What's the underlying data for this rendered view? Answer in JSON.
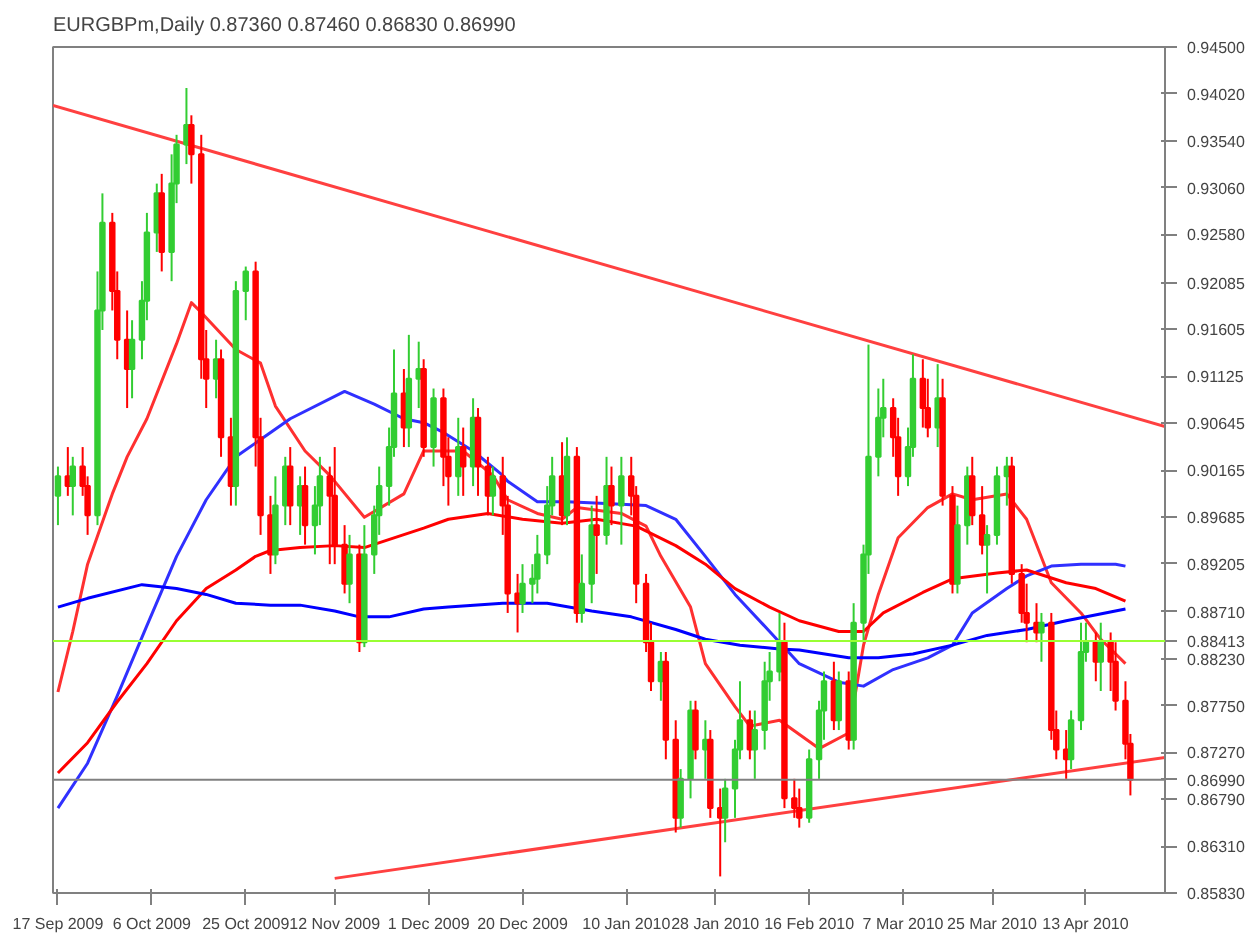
{
  "chart_data": {
    "type": "candlestick",
    "title": "EURGBPm,Daily 0.87360 0.87460 0.86830 0.86990",
    "x": [
      "2009-09-17",
      "2009-09-19",
      "2009-09-20",
      "2009-09-22",
      "2009-09-23",
      "2009-09-25",
      "2009-09-26",
      "2009-09-28",
      "2009-09-29",
      "2009-10-01",
      "2009-10-02",
      "2009-10-04",
      "2009-10-05",
      "2009-10-07",
      "2009-10-08",
      "2009-10-10",
      "2009-10-11",
      "2009-10-13",
      "2009-10-14",
      "2009-10-16",
      "2009-10-17",
      "2009-10-19",
      "2009-10-20",
      "2009-10-22",
      "2009-10-23",
      "2009-10-25",
      "2009-10-27",
      "2009-10-28",
      "2009-10-30",
      "2009-10-31",
      "2009-11-02",
      "2009-11-03",
      "2009-11-05",
      "2009-11-06",
      "2009-11-08",
      "2009-11-09",
      "2009-11-11",
      "2009-11-12",
      "2009-11-14",
      "2009-11-15",
      "2009-11-17",
      "2009-11-18",
      "2009-11-20",
      "2009-11-21",
      "2009-11-23",
      "2009-11-24",
      "2009-11-26",
      "2009-11-27",
      "2009-11-29",
      "2009-11-30",
      "2009-12-02",
      "2009-12-04",
      "2009-12-05",
      "2009-12-07",
      "2009-12-08",
      "2009-12-10",
      "2009-12-11",
      "2009-12-13",
      "2009-12-14",
      "2009-12-16",
      "2009-12-17",
      "2009-12-19",
      "2009-12-20",
      "2009-12-22",
      "2009-12-23",
      "2009-12-25",
      "2009-12-26",
      "2009-12-28",
      "2009-12-29",
      "2009-12-31",
      "2010-01-01",
      "2010-01-03",
      "2010-01-04",
      "2010-01-06",
      "2010-01-07",
      "2010-01-09",
      "2010-01-11",
      "2010-01-12",
      "2010-01-14",
      "2010-01-15",
      "2010-01-17",
      "2010-01-18",
      "2010-01-20",
      "2010-01-21",
      "2010-01-23",
      "2010-01-24",
      "2010-01-26",
      "2010-01-27",
      "2010-01-29",
      "2010-01-30",
      "2010-02-01",
      "2010-02-02",
      "2010-02-04",
      "2010-02-05",
      "2010-02-07",
      "2010-02-08",
      "2010-02-10",
      "2010-02-11",
      "2010-02-13",
      "2010-02-14",
      "2010-02-16",
      "2010-02-18",
      "2010-02-19",
      "2010-02-21",
      "2010-02-22",
      "2010-02-24",
      "2010-02-25",
      "2010-02-27",
      "2010-02-28",
      "2010-03-02",
      "2010-03-03",
      "2010-03-05",
      "2010-03-06",
      "2010-03-08",
      "2010-03-09",
      "2010-03-11",
      "2010-03-12",
      "2010-03-14",
      "2010-03-15",
      "2010-03-17",
      "2010-03-18",
      "2010-03-20",
      "2010-03-21",
      "2010-03-23",
      "2010-03-24",
      "2010-03-26",
      "2010-03-28",
      "2010-03-29",
      "2010-03-31",
      "2010-04-01",
      "2010-04-03",
      "2010-04-04",
      "2010-04-06",
      "2010-04-07",
      "2010-04-09",
      "2010-04-10",
      "2010-04-12",
      "2010-04-13",
      "2010-04-15",
      "2010-04-16",
      "2010-04-18",
      "2010-04-19",
      "2010-04-21",
      "2010-04-22"
    ],
    "ohlc": [
      [
        0.899,
        0.902,
        0.896,
        0.901
      ],
      [
        0.901,
        0.904,
        0.899,
        0.9
      ],
      [
        0.9,
        0.903,
        0.897,
        0.902
      ],
      [
        0.902,
        0.904,
        0.899,
        0.9
      ],
      [
        0.9,
        0.901,
        0.895,
        0.897
      ],
      [
        0.897,
        0.922,
        0.896,
        0.918
      ],
      [
        0.918,
        0.93,
        0.916,
        0.927
      ],
      [
        0.927,
        0.928,
        0.918,
        0.92
      ],
      [
        0.92,
        0.922,
        0.913,
        0.915
      ],
      [
        0.915,
        0.918,
        0.908,
        0.912
      ],
      [
        0.912,
        0.917,
        0.909,
        0.915
      ],
      [
        0.915,
        0.921,
        0.913,
        0.919
      ],
      [
        0.919,
        0.928,
        0.917,
        0.926
      ],
      [
        0.926,
        0.931,
        0.924,
        0.93
      ],
      [
        0.93,
        0.932,
        0.922,
        0.924
      ],
      [
        0.924,
        0.934,
        0.921,
        0.931
      ],
      [
        0.931,
        0.936,
        0.929,
        0.935
      ],
      [
        0.935,
        0.9408,
        0.933,
        0.937
      ],
      [
        0.937,
        0.938,
        0.931,
        0.934
      ],
      [
        0.934,
        0.936,
        0.911,
        0.913
      ],
      [
        0.913,
        0.916,
        0.908,
        0.911
      ],
      [
        0.911,
        0.915,
        0.909,
        0.913
      ],
      [
        0.913,
        0.914,
        0.903,
        0.905
      ],
      [
        0.905,
        0.907,
        0.898,
        0.9
      ],
      [
        0.9,
        0.921,
        0.898,
        0.92
      ],
      [
        0.92,
        0.9225,
        0.917,
        0.922
      ],
      [
        0.922,
        0.923,
        0.902,
        0.905
      ],
      [
        0.905,
        0.907,
        0.895,
        0.897
      ],
      [
        0.897,
        0.899,
        0.891,
        0.893
      ],
      [
        0.893,
        0.901,
        0.892,
        0.898
      ],
      [
        0.898,
        0.903,
        0.896,
        0.902
      ],
      [
        0.902,
        0.904,
        0.896,
        0.898
      ],
      [
        0.898,
        0.901,
        0.895,
        0.9
      ],
      [
        0.9,
        0.902,
        0.894,
        0.896
      ],
      [
        0.896,
        0.9,
        0.893,
        0.898
      ],
      [
        0.898,
        0.903,
        0.896,
        0.901
      ],
      [
        0.901,
        0.902,
        0.892,
        0.899
      ],
      [
        0.899,
        0.904,
        0.892,
        0.894
      ],
      [
        0.894,
        0.896,
        0.889,
        0.89
      ],
      [
        0.89,
        0.895,
        0.888,
        0.893
      ],
      [
        0.893,
        0.894,
        0.883,
        0.884
      ],
      [
        0.884,
        0.896,
        0.8835,
        0.893
      ],
      [
        0.893,
        0.898,
        0.891,
        0.897
      ],
      [
        0.897,
        0.902,
        0.895,
        0.9
      ],
      [
        0.9,
        0.906,
        0.898,
        0.904
      ],
      [
        0.904,
        0.914,
        0.903,
        0.9095
      ],
      [
        0.9095,
        0.912,
        0.904,
        0.906
      ],
      [
        0.906,
        0.9155,
        0.904,
        0.911
      ],
      [
        0.911,
        0.9148,
        0.908,
        0.912
      ],
      [
        0.912,
        0.913,
        0.903,
        0.904
      ],
      [
        0.904,
        0.91,
        0.902,
        0.909
      ],
      [
        0.909,
        0.91,
        0.9,
        0.903
      ],
      [
        0.903,
        0.905,
        0.898,
        0.901
      ],
      [
        0.901,
        0.907,
        0.899,
        0.904
      ],
      [
        0.904,
        0.906,
        0.899,
        0.902
      ],
      [
        0.902,
        0.909,
        0.9,
        0.907
      ],
      [
        0.907,
        0.908,
        0.899,
        0.902
      ],
      [
        0.902,
        0.903,
        0.897,
        0.899
      ],
      [
        0.899,
        0.902,
        0.897,
        0.901
      ],
      [
        0.901,
        0.903,
        0.895,
        0.898
      ],
      [
        0.898,
        0.899,
        0.887,
        0.889
      ],
      [
        0.889,
        0.891,
        0.885,
        0.888
      ],
      [
        0.888,
        0.892,
        0.887,
        0.89
      ],
      [
        0.89,
        0.892,
        0.888,
        0.8905
      ],
      [
        0.8905,
        0.895,
        0.889,
        0.893
      ],
      [
        0.893,
        0.9,
        0.892,
        0.898
      ],
      [
        0.898,
        0.903,
        0.897,
        0.901
      ],
      [
        0.901,
        0.9045,
        0.896,
        0.897
      ],
      [
        0.897,
        0.905,
        0.896,
        0.903
      ],
      [
        0.903,
        0.904,
        0.886,
        0.887
      ],
      [
        0.887,
        0.893,
        0.886,
        0.89
      ],
      [
        0.89,
        0.898,
        0.888,
        0.896
      ],
      [
        0.896,
        0.899,
        0.891,
        0.895
      ],
      [
        0.895,
        0.903,
        0.894,
        0.9
      ],
      [
        0.9,
        0.902,
        0.896,
        0.898
      ],
      [
        0.898,
        0.903,
        0.894,
        0.901
      ],
      [
        0.901,
        0.903,
        0.897,
        0.899
      ],
      [
        0.899,
        0.9,
        0.888,
        0.89
      ],
      [
        0.89,
        0.891,
        0.883,
        0.884
      ],
      [
        0.884,
        0.886,
        0.879,
        0.88
      ],
      [
        0.88,
        0.883,
        0.878,
        0.882
      ],
      [
        0.882,
        0.883,
        0.872,
        0.874
      ],
      [
        0.874,
        0.876,
        0.8645,
        0.866
      ],
      [
        0.866,
        0.871,
        0.865,
        0.87
      ],
      [
        0.87,
        0.878,
        0.868,
        0.877
      ],
      [
        0.877,
        0.878,
        0.872,
        0.873
      ],
      [
        0.873,
        0.876,
        0.87,
        0.874
      ],
      [
        0.874,
        0.875,
        0.866,
        0.867
      ],
      [
        0.867,
        0.869,
        0.86,
        0.866
      ],
      [
        0.866,
        0.87,
        0.8635,
        0.869
      ],
      [
        0.869,
        0.874,
        0.866,
        0.873
      ],
      [
        0.873,
        0.88,
        0.872,
        0.876
      ],
      [
        0.876,
        0.877,
        0.872,
        0.873
      ],
      [
        0.873,
        0.877,
        0.87,
        0.875
      ],
      [
        0.875,
        0.882,
        0.873,
        0.88
      ],
      [
        0.88,
        0.883,
        0.878,
        0.881
      ],
      [
        0.881,
        0.887,
        0.88,
        0.884
      ],
      [
        0.884,
        0.886,
        0.867,
        0.868
      ],
      [
        0.868,
        0.87,
        0.866,
        0.867
      ],
      [
        0.867,
        0.869,
        0.865,
        0.866
      ],
      [
        0.866,
        0.873,
        0.8655,
        0.872
      ],
      [
        0.872,
        0.878,
        0.87,
        0.877
      ],
      [
        0.877,
        0.881,
        0.874,
        0.88
      ],
      [
        0.88,
        0.882,
        0.875,
        0.876
      ],
      [
        0.876,
        0.881,
        0.875,
        0.88
      ],
      [
        0.88,
        0.881,
        0.873,
        0.874
      ],
      [
        0.874,
        0.888,
        0.873,
        0.886
      ],
      [
        0.886,
        0.894,
        0.884,
        0.893
      ],
      [
        0.893,
        0.9145,
        0.891,
        0.903
      ],
      [
        0.903,
        0.91,
        0.901,
        0.907
      ],
      [
        0.907,
        0.911,
        0.905,
        0.908
      ],
      [
        0.908,
        0.909,
        0.903,
        0.905
      ],
      [
        0.905,
        0.907,
        0.899,
        0.901
      ],
      [
        0.901,
        0.906,
        0.9,
        0.904
      ],
      [
        0.904,
        0.9135,
        0.903,
        0.911
      ],
      [
        0.911,
        0.913,
        0.906,
        0.908
      ],
      [
        0.908,
        0.911,
        0.905,
        0.906
      ],
      [
        0.906,
        0.9125,
        0.904,
        0.909
      ],
      [
        0.909,
        0.911,
        0.898,
        0.899
      ],
      [
        0.899,
        0.9,
        0.889,
        0.89
      ],
      [
        0.89,
        0.898,
        0.889,
        0.896
      ],
      [
        0.896,
        0.902,
        0.894,
        0.901
      ],
      [
        0.901,
        0.903,
        0.896,
        0.897
      ],
      [
        0.897,
        0.9,
        0.893,
        0.894
      ],
      [
        0.894,
        0.896,
        0.889,
        0.895
      ],
      [
        0.895,
        0.902,
        0.894,
        0.901
      ],
      [
        0.901,
        0.903,
        0.898,
        0.902
      ],
      [
        0.902,
        0.903,
        0.89,
        0.891
      ],
      [
        0.891,
        0.892,
        0.886,
        0.887
      ],
      [
        0.887,
        0.89,
        0.884,
        0.886
      ],
      [
        0.886,
        0.888,
        0.884,
        0.885
      ],
      [
        0.885,
        0.887,
        0.882,
        0.886
      ],
      [
        0.886,
        0.887,
        0.874,
        0.875
      ],
      [
        0.875,
        0.877,
        0.872,
        0.873
      ],
      [
        0.873,
        0.875,
        0.87,
        0.872
      ],
      [
        0.872,
        0.877,
        0.871,
        0.876
      ],
      [
        0.876,
        0.886,
        0.875,
        0.883
      ],
      [
        0.883,
        0.886,
        0.882,
        0.884
      ],
      [
        0.884,
        0.885,
        0.88,
        0.882
      ],
      [
        0.882,
        0.886,
        0.879,
        0.884
      ],
      [
        0.884,
        0.885,
        0.879,
        0.882
      ],
      [
        0.882,
        0.884,
        0.877,
        0.878
      ],
      [
        0.878,
        0.88,
        0.872,
        0.8736
      ],
      [
        0.8736,
        0.8746,
        0.8683,
        0.8699
      ]
    ],
    "colors": [
      "#32cd32",
      "#ff0000",
      "#32cd32",
      "#ff0000",
      "#ff0000",
      "#32cd32",
      "#32cd32",
      "#ff0000",
      "#ff0000",
      "#ff0000",
      "#32cd32",
      "#32cd32",
      "#32cd32",
      "#32cd32",
      "#ff0000",
      "#32cd32",
      "#32cd32",
      "#32cd32",
      "#ff0000",
      "#ff0000",
      "#ff0000",
      "#32cd32",
      "#ff0000",
      "#ff0000",
      "#32cd32",
      "#32cd32",
      "#ff0000",
      "#ff0000",
      "#ff0000",
      "#32cd32",
      "#32cd32",
      "#ff0000",
      "#32cd32",
      "#ff0000",
      "#32cd32",
      "#32cd32",
      "#ff0000",
      "#ff0000",
      "#ff0000",
      "#32cd32",
      "#ff0000",
      "#32cd32",
      "#32cd32",
      "#32cd32",
      "#32cd32",
      "#32cd32",
      "#ff0000",
      "#32cd32",
      "#32cd32",
      "#ff0000",
      "#32cd32",
      "#ff0000",
      "#ff0000",
      "#32cd32",
      "#ff0000",
      "#32cd32",
      "#ff0000",
      "#ff0000",
      "#32cd32",
      "#ff0000",
      "#ff0000",
      "#ff0000",
      "#32cd32",
      "#32cd32",
      "#32cd32",
      "#32cd32",
      "#32cd32",
      "#ff0000",
      "#32cd32",
      "#ff0000",
      "#32cd32",
      "#32cd32",
      "#ff0000",
      "#32cd32",
      "#ff0000",
      "#32cd32",
      "#ff0000",
      "#ff0000",
      "#ff0000",
      "#ff0000",
      "#32cd32",
      "#ff0000",
      "#ff0000",
      "#32cd32",
      "#32cd32",
      "#ff0000",
      "#32cd32",
      "#ff0000",
      "#ff0000",
      "#32cd32",
      "#32cd32",
      "#32cd32",
      "#ff0000",
      "#32cd32",
      "#32cd32",
      "#32cd32",
      "#32cd32",
      "#ff0000",
      "#ff0000",
      "#ff0000",
      "#32cd32",
      "#32cd32",
      "#32cd32",
      "#ff0000",
      "#32cd32",
      "#ff0000",
      "#32cd32",
      "#32cd32",
      "#32cd32",
      "#32cd32",
      "#32cd32",
      "#ff0000",
      "#ff0000",
      "#32cd32",
      "#32cd32",
      "#ff0000",
      "#ff0000",
      "#32cd32",
      "#ff0000",
      "#ff0000",
      "#32cd32",
      "#32cd32",
      "#ff0000",
      "#ff0000",
      "#32cd32",
      "#32cd32",
      "#32cd32",
      "#ff0000",
      "#ff0000",
      "#ff0000",
      "#ff0000",
      "#32cd32",
      "#ff0000",
      "#ff0000",
      "#ff0000",
      "#32cd32",
      "#32cd32",
      "#32cd32",
      "#ff0000",
      "#32cd32",
      "#ff0000",
      "#ff0000",
      "#ff0000",
      "#ff0000"
    ],
    "series": [
      {
        "type": "line",
        "color": "#ff3030",
        "x": [
          "2009-09-17",
          "2009-09-20",
          "2009-09-23",
          "2009-09-28",
          "2009-10-01",
          "2009-10-05",
          "2009-10-11",
          "2009-10-14",
          "2009-10-16",
          "2009-10-23",
          "2009-10-28",
          "2009-10-31",
          "2009-11-06",
          "2009-11-11",
          "2009-11-18",
          "2009-11-26",
          "2009-11-30",
          "2009-12-08",
          "2009-12-14",
          "2009-12-17",
          "2009-12-23",
          "2009-12-28",
          "2009-12-31",
          "2010-01-09",
          "2010-01-14",
          "2010-01-17",
          "2010-01-23",
          "2010-01-26",
          "2010-02-01",
          "2010-02-04",
          "2010-02-10",
          "2010-02-18",
          "2010-02-24",
          "2010-02-27",
          "2010-03-02",
          "2010-03-06",
          "2010-03-12",
          "2010-03-17",
          "2010-03-21",
          "2010-03-28",
          "2010-04-01",
          "2010-04-06",
          "2010-04-12",
          "2010-04-16",
          "2010-04-21"
        ],
        "values": [
          0.8789,
          0.8851,
          0.892,
          0.8992,
          0.903,
          0.9069,
          0.9146,
          0.9188,
          0.9178,
          0.914,
          0.9126,
          0.9082,
          0.9036,
          0.9011,
          0.8968,
          0.8992,
          0.9036,
          0.9036,
          0.9011,
          0.8986,
          0.8972,
          0.8966,
          0.8978,
          0.8972,
          0.8959,
          0.8928,
          0.8876,
          0.8818,
          0.8774,
          0.8754,
          0.876,
          0.8731,
          0.8747,
          0.8837,
          0.8889,
          0.8947,
          0.8978,
          0.8992,
          0.8986,
          0.8992,
          0.8966,
          0.8901,
          0.887,
          0.8843,
          0.8818
        ]
      },
      {
        "type": "line",
        "color": "#3030ff",
        "x": [
          "2009-09-17",
          "2009-09-23",
          "2009-09-29",
          "2009-10-05",
          "2009-10-11",
          "2009-10-17",
          "2009-10-23",
          "2009-11-03",
          "2009-11-14",
          "2009-11-20",
          "2009-11-26",
          "2009-11-30",
          "2009-12-04",
          "2009-12-10",
          "2009-12-16",
          "2009-12-17",
          "2009-12-23",
          "2009-12-29",
          "2010-01-07",
          "2010-01-14",
          "2010-01-20",
          "2010-01-26",
          "2010-02-01",
          "2010-02-08",
          "2010-02-14",
          "2010-02-22",
          "2010-02-27",
          "2010-03-05",
          "2010-03-12",
          "2010-03-17",
          "2010-03-21",
          "2010-03-28",
          "2010-04-01",
          "2010-04-06",
          "2010-04-12",
          "2010-04-19",
          "2010-04-21"
        ],
        "values": [
          0.867,
          0.8716,
          0.8785,
          0.8857,
          0.8928,
          0.8986,
          0.903,
          0.9069,
          0.9097,
          0.9084,
          0.9069,
          0.9065,
          0.9055,
          0.9036,
          0.9011,
          0.9005,
          0.8984,
          0.8984,
          0.8982,
          0.898,
          0.8966,
          0.8928,
          0.8889,
          0.8851,
          0.8818,
          0.8799,
          0.8795,
          0.8812,
          0.8824,
          0.8837,
          0.887,
          0.8895,
          0.8908,
          0.8918,
          0.892,
          0.892,
          0.8918
        ]
      },
      {
        "type": "line",
        "color": "#ff0000",
        "x": [
          "2009-09-17",
          "2009-09-23",
          "2009-09-29",
          "2009-10-05",
          "2009-10-11",
          "2009-10-17",
          "2009-10-23",
          "2009-10-27",
          "2009-10-30",
          "2009-11-05",
          "2009-11-12",
          "2009-11-18",
          "2009-11-24",
          "2009-11-30",
          "2009-12-05",
          "2009-12-13",
          "2009-12-20",
          "2009-12-28",
          "2010-01-04",
          "2010-01-12",
          "2010-01-20",
          "2010-01-26",
          "2010-02-01",
          "2010-02-08",
          "2010-02-14",
          "2010-02-22",
          "2010-02-27",
          "2010-03-03",
          "2010-03-11",
          "2010-03-17",
          "2010-03-26",
          "2010-04-01",
          "2010-04-09",
          "2010-04-15",
          "2010-04-21"
        ],
        "values": [
          0.8706,
          0.8737,
          0.8779,
          0.8818,
          0.8862,
          0.8895,
          0.8914,
          0.8928,
          0.8934,
          0.8937,
          0.8939,
          0.8937,
          0.8947,
          0.8957,
          0.8966,
          0.8972,
          0.8966,
          0.8962,
          0.8966,
          0.8959,
          0.8939,
          0.892,
          0.8895,
          0.8876,
          0.8862,
          0.8851,
          0.8851,
          0.887,
          0.8891,
          0.8905,
          0.8911,
          0.8914,
          0.8901,
          0.8895,
          0.8882
        ]
      },
      {
        "type": "line",
        "color": "#0000ff",
        "x": [
          "2009-09-17",
          "2009-09-23",
          "2009-10-04",
          "2009-10-11",
          "2009-10-17",
          "2009-10-23",
          "2009-10-30",
          "2009-11-05",
          "2009-11-12",
          "2009-11-17",
          "2009-11-23",
          "2009-11-30",
          "2009-12-05",
          "2009-12-16",
          "2009-12-25",
          "2010-01-03",
          "2010-01-11",
          "2010-01-20",
          "2010-01-26",
          "2010-02-02",
          "2010-02-10",
          "2010-02-14",
          "2010-02-24",
          "2010-03-02",
          "2010-03-09",
          "2010-03-17",
          "2010-03-24",
          "2010-04-01",
          "2010-04-09",
          "2010-04-21"
        ],
        "values": [
          0.8876,
          0.8885,
          0.8899,
          0.8895,
          0.8889,
          0.888,
          0.8878,
          0.8878,
          0.8872,
          0.8866,
          0.8866,
          0.8874,
          0.8876,
          0.888,
          0.888,
          0.8872,
          0.8866,
          0.8853,
          0.8843,
          0.8837,
          0.8833,
          0.8832,
          0.8824,
          0.8824,
          0.8828,
          0.8837,
          0.8847,
          0.8853,
          0.8862,
          0.8874
        ]
      },
      {
        "type": "line",
        "color": "#ff4040",
        "x": [
          "2009-09-16",
          "2010-04-29"
        ],
        "values": [
          0.939,
          0.9061
        ]
      },
      {
        "type": "line",
        "color": "#ff4040",
        "x": [
          "2009-11-12",
          "2010-04-29"
        ],
        "values": [
          0.8598,
          0.8722
        ]
      }
    ],
    "ref_lines": [
      {
        "axis": "y",
        "value": 0.88413,
        "label": "0.88413",
        "color": "#99ff33"
      },
      {
        "axis": "y",
        "value": 0.8699,
        "label": "0.86990",
        "color": "#808080"
      }
    ],
    "xlim": [
      "2009-09-16",
      "2010-04-29"
    ],
    "ylim": [
      0.8583,
      0.945
    ],
    "xticks": [
      {
        "value": "2009-09-17",
        "label": "17 Sep 2009"
      },
      {
        "value": "2009-10-06",
        "label": "6 Oct 2009"
      },
      {
        "value": "2009-10-25",
        "label": "25 Oct 2009"
      },
      {
        "value": "2009-11-12",
        "label": "12 Nov 2009"
      },
      {
        "value": "2009-12-01",
        "label": "1 Dec 2009"
      },
      {
        "value": "2009-12-20",
        "label": "20 Dec 2009"
      },
      {
        "value": "2010-01-10",
        "label": "10 Jan 2010"
      },
      {
        "value": "2010-01-28",
        "label": "28 Jan 2010"
      },
      {
        "value": "2010-02-16",
        "label": "16 Feb 2010"
      },
      {
        "value": "2010-03-07",
        "label": "7 Mar 2010"
      },
      {
        "value": "2010-03-25",
        "label": "25 Mar 2010"
      },
      {
        "value": "2010-04-13",
        "label": "13 Apr 2010"
      }
    ],
    "yticks": [
      {
        "value": 0.945,
        "label": "0.94500"
      },
      {
        "value": 0.9402,
        "label": "0.94020"
      },
      {
        "value": 0.9354,
        "label": "0.93540"
      },
      {
        "value": 0.9306,
        "label": "0.93060"
      },
      {
        "value": 0.9258,
        "label": "0.92580"
      },
      {
        "value": 0.92085,
        "label": "0.92085"
      },
      {
        "value": 0.91605,
        "label": "0.91605"
      },
      {
        "value": 0.91125,
        "label": "0.91125"
      },
      {
        "value": 0.90645,
        "label": "0.90645"
      },
      {
        "value": 0.90165,
        "label": "0.90165"
      },
      {
        "value": 0.89685,
        "label": "0.89685"
      },
      {
        "value": 0.89205,
        "label": "0.89205"
      },
      {
        "value": 0.8871,
        "label": "0.88710"
      },
      {
        "value": 0.8823,
        "label": "0.88230"
      },
      {
        "value": 0.8775,
        "label": "0.87750"
      },
      {
        "value": 0.8727,
        "label": "0.87270"
      },
      {
        "value": 0.8679,
        "label": "0.86790"
      },
      {
        "value": 0.8631,
        "label": "0.86310"
      },
      {
        "value": 0.8583,
        "label": "0.85830"
      }
    ],
    "grid": false
  }
}
